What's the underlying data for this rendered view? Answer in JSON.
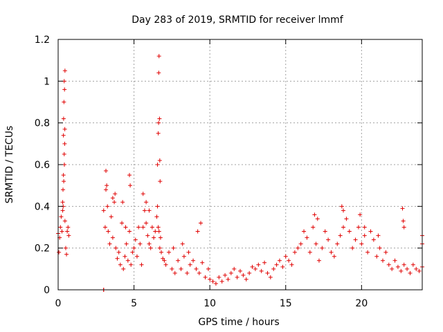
{
  "chart_data": {
    "type": "scatter",
    "title": "Day 283 of 2019, SRMTID for receiver lmmf",
    "xlabel": "GPS time / hours",
    "ylabel": "SRMTID / TECUs",
    "xlim": [
      0,
      24
    ],
    "ylim": [
      0,
      1.2
    ],
    "grid": true,
    "x_ticks": [
      0,
      5,
      10,
      15,
      20
    ],
    "x_tick_labels": [
      "0",
      "5",
      "10",
      "15",
      "20"
    ],
    "y_ticks": [
      0,
      0.2,
      0.4,
      0.6,
      0.8,
      1.0,
      1.2
    ],
    "y_tick_labels": [
      "0",
      "0.2",
      "0.4",
      "0.6",
      "0.8",
      "1",
      "1.2"
    ],
    "series": [
      {
        "name": "SRMTID",
        "marker": "+",
        "color": "#e00000",
        "x": [
          0.0,
          0.05,
          0.1,
          0.15,
          0.2,
          0.25,
          0.3,
          0.35,
          0.4,
          0.45,
          0.5,
          0.55,
          0.6,
          0.65,
          0.7,
          0.3,
          0.35,
          0.38,
          0.4,
          0.42,
          0.45,
          0.32,
          0.36,
          0.44,
          0.41,
          0.37,
          0.33,
          0.43,
          3.0,
          3.1,
          3.15,
          3.2,
          3.3,
          3.4,
          3.5,
          3.6,
          3.7,
          3.8,
          3.9,
          4.0,
          4.1,
          4.2,
          4.3,
          4.4,
          4.5,
          4.6,
          4.7,
          4.8,
          4.9,
          5.0,
          5.1,
          5.2,
          5.3,
          5.4,
          5.5,
          5.6,
          5.7,
          5.8,
          5.9,
          6.0,
          6.1,
          6.2,
          6.3,
          6.4,
          6.5,
          6.55,
          6.6,
          6.65,
          6.7,
          6.75,
          6.8,
          6.9,
          7.0,
          3.15,
          3.25,
          3.6,
          3.75,
          4.25,
          4.45,
          4.7,
          4.75,
          5.6,
          5.8,
          6.0,
          6.55,
          6.6,
          6.62,
          6.63,
          6.65,
          6.68,
          6.7,
          6.72,
          7.1,
          7.3,
          7.5,
          7.7,
          7.9,
          8.1,
          8.3,
          8.5,
          8.7,
          8.9,
          9.1,
          9.3,
          9.5,
          9.7,
          9.9,
          8.2,
          8.6,
          9.2,
          9.4,
          7.6,
          10.0,
          10.2,
          10.4,
          10.6,
          10.8,
          11.0,
          11.2,
          11.4,
          11.6,
          11.8,
          12.0,
          12.2,
          12.4,
          12.6,
          12.8,
          13.0,
          13.2,
          13.4,
          13.6,
          13.8,
          14.0,
          14.2,
          14.4,
          14.6,
          14.8,
          15.0,
          15.2,
          15.4,
          15.6,
          15.8,
          16.0,
          16.2,
          16.4,
          16.6,
          16.8,
          17.0,
          17.2,
          17.4,
          17.6,
          17.8,
          18.0,
          18.2,
          18.4,
          18.6,
          18.8,
          19.0,
          19.2,
          19.4,
          19.6,
          19.8,
          20.0,
          20.2,
          20.4,
          20.6,
          20.8,
          21.0,
          21.2,
          21.4,
          21.6,
          21.8,
          22.0,
          22.2,
          22.4,
          22.6,
          22.8,
          23.0,
          23.2,
          23.4,
          23.6,
          23.8,
          24.0,
          16.9,
          17.1,
          18.7,
          18.8,
          19.9,
          20.2,
          21.1,
          22.7,
          22.75,
          22.8,
          24.0,
          24.0,
          3.0,
          3.0
        ],
        "y": [
          0.27,
          0.18,
          0.25,
          0.3,
          0.35,
          0.28,
          0.38,
          0.55,
          0.65,
          0.33,
          0.2,
          0.17,
          0.28,
          0.3,
          0.26,
          0.42,
          0.74,
          0.9,
          1.0,
          0.96,
          1.05,
          0.48,
          0.82,
          0.77,
          0.6,
          0.52,
          0.4,
          0.7,
          0.38,
          0.3,
          0.57,
          0.5,
          0.28,
          0.22,
          0.35,
          0.25,
          0.42,
          0.2,
          0.15,
          0.18,
          0.12,
          0.32,
          0.1,
          0.16,
          0.22,
          0.14,
          0.28,
          0.12,
          0.18,
          0.2,
          0.24,
          0.16,
          0.3,
          0.22,
          0.12,
          0.3,
          0.38,
          0.32,
          0.26,
          0.22,
          0.2,
          0.3,
          0.25,
          0.28,
          0.35,
          0.4,
          0.3,
          0.28,
          0.2,
          0.25,
          0.18,
          0.15,
          0.14,
          0.48,
          0.4,
          0.44,
          0.46,
          0.42,
          0.3,
          0.55,
          0.5,
          0.46,
          0.42,
          0.38,
          0.6,
          0.75,
          0.8,
          1.04,
          1.12,
          0.82,
          0.62,
          0.52,
          0.12,
          0.18,
          0.1,
          0.08,
          0.14,
          0.1,
          0.16,
          0.08,
          0.12,
          0.14,
          0.1,
          0.08,
          0.13,
          0.06,
          0.1,
          0.22,
          0.18,
          0.28,
          0.32,
          0.2,
          0.05,
          0.04,
          0.03,
          0.06,
          0.04,
          0.07,
          0.05,
          0.08,
          0.1,
          0.06,
          0.09,
          0.07,
          0.05,
          0.08,
          0.11,
          0.1,
          0.12,
          0.09,
          0.13,
          0.08,
          0.06,
          0.1,
          0.12,
          0.14,
          0.11,
          0.16,
          0.14,
          0.12,
          0.18,
          0.2,
          0.22,
          0.28,
          0.25,
          0.18,
          0.3,
          0.22,
          0.14,
          0.2,
          0.28,
          0.24,
          0.18,
          0.16,
          0.22,
          0.26,
          0.3,
          0.34,
          0.28,
          0.2,
          0.24,
          0.3,
          0.22,
          0.26,
          0.18,
          0.28,
          0.24,
          0.16,
          0.2,
          0.14,
          0.18,
          0.12,
          0.1,
          0.14,
          0.11,
          0.09,
          0.12,
          0.1,
          0.08,
          0.12,
          0.1,
          0.09,
          0.11,
          0.36,
          0.34,
          0.4,
          0.38,
          0.36,
          0.3,
          0.26,
          0.39,
          0.33,
          0.3,
          0.26,
          0.22,
          0.0,
          0.0
        ]
      }
    ]
  }
}
